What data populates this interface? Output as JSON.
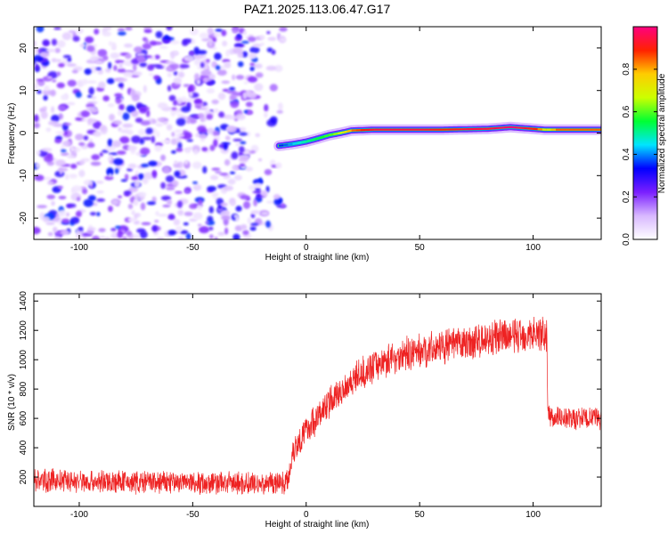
{
  "title": "PAZ1.2025.113.06.47.G17",
  "chart_data": [
    {
      "type": "heatmap",
      "name": "spectrogram",
      "xlabel": "Height of straight line (km)",
      "ylabel": "Frequency (Hz)",
      "xlim": [
        -120,
        130
      ],
      "ylim": [
        -25,
        25
      ],
      "xticks": [
        -100,
        -50,
        0,
        50,
        100
      ],
      "yticks": [
        -20,
        -10,
        0,
        10,
        20
      ],
      "xtick_labels": [
        "-100",
        "-50",
        "0",
        "50",
        "100"
      ],
      "ytick_labels": [
        "-20",
        "-10",
        "0",
        "10",
        "20"
      ],
      "noise_region_x": [
        -120,
        -12
      ],
      "ridge": {
        "x": [
          -12,
          -5,
          0,
          5,
          10,
          15,
          20,
          30,
          40,
          50,
          60,
          70,
          80,
          90,
          95,
          100,
          105,
          110,
          120,
          130
        ],
        "y": [
          -3,
          -2.5,
          -2,
          -1.3,
          -0.5,
          0,
          0.6,
          0.8,
          0.8,
          0.8,
          0.8,
          0.9,
          1.0,
          1.4,
          1.2,
          1.0,
          0.8,
          0.8,
          0.8,
          0.8
        ],
        "amplitude": [
          0.35,
          0.45,
          0.5,
          0.55,
          0.6,
          0.7,
          0.85,
          0.95,
          0.95,
          0.95,
          0.9,
          0.95,
          0.95,
          1.0,
          0.95,
          0.9,
          0.7,
          0.85,
          0.85,
          0.85
        ]
      },
      "colorbar": {
        "label": "Normalized spectral amplitude",
        "range": [
          0,
          1
        ],
        "ticks": [
          0.0,
          0.2,
          0.4,
          0.6,
          0.8
        ],
        "tick_labels": [
          "0.0",
          "0.2",
          "0.4",
          "0.6",
          "0.8"
        ],
        "colors": [
          "#ffffff",
          "#d8b8ff",
          "#7a1fff",
          "#0000ff",
          "#00e5ff",
          "#00ff33",
          "#ccff00",
          "#ffcc00",
          "#ff2200",
          "#ff0080"
        ]
      }
    },
    {
      "type": "line",
      "name": "snr",
      "xlabel": "Height of straight line (km)",
      "ylabel": "SNR (10 * v/v)",
      "xlim": [
        -120,
        130
      ],
      "ylim": [
        0,
        1450
      ],
      "xticks": [
        -100,
        -50,
        0,
        50,
        100
      ],
      "yticks": [
        200,
        400,
        600,
        800,
        1000,
        1200,
        1400
      ],
      "xtick_labels": [
        "-100",
        "-50",
        "0",
        "50",
        "100"
      ],
      "ytick_labels": [
        "200",
        "400",
        "600",
        "800",
        "1000",
        "1200",
        "1400"
      ],
      "color": "#ee2222",
      "trend": {
        "x": [
          -120,
          -100,
          -80,
          -60,
          -40,
          -20,
          -8,
          -6,
          0,
          10,
          20,
          30,
          40,
          50,
          60,
          70,
          80,
          90,
          100,
          106,
          106.5,
          115,
          130
        ],
        "y": [
          180,
          170,
          165,
          165,
          160,
          155,
          170,
          380,
          520,
          700,
          860,
          960,
          1020,
          1060,
          1090,
          1110,
          1140,
          1160,
          1180,
          1180,
          620,
          600,
          600
        ],
        "noise": [
          90,
          90,
          90,
          90,
          90,
          90,
          90,
          120,
          120,
          120,
          120,
          120,
          130,
          130,
          130,
          130,
          140,
          140,
          140,
          140,
          90,
          90,
          90
        ]
      }
    }
  ]
}
